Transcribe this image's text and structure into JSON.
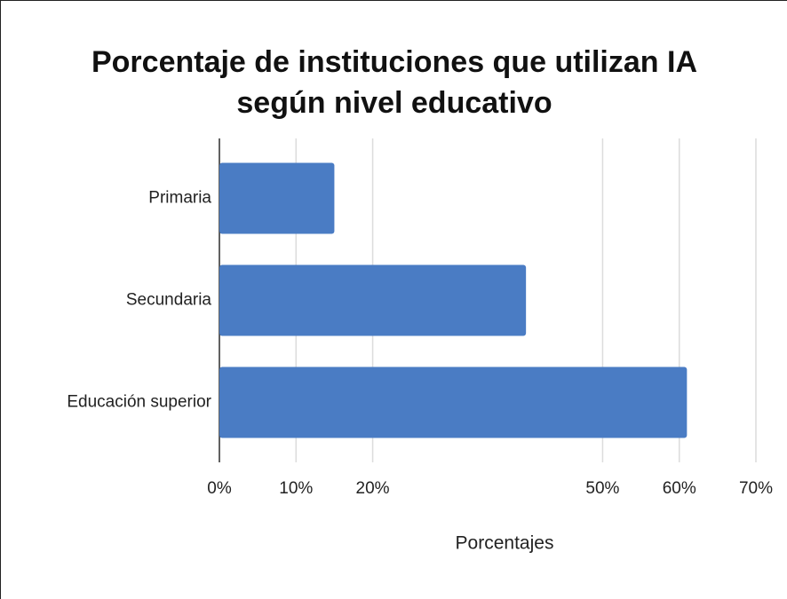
{
  "chart_data": {
    "type": "barh",
    "title": "Porcentaje de instituciones que utilizan IA según nivel educativo",
    "categories": [
      "Primaria",
      "Secundaria",
      "Educación superior"
    ],
    "values": [
      15,
      40,
      61
    ],
    "color": "#4a7cc4",
    "xlim": [
      0,
      70
    ],
    "xticks": [
      {
        "value": 0,
        "label": "0%"
      },
      {
        "value": 10,
        "label": "10%"
      },
      {
        "value": 20,
        "label": "20%"
      },
      {
        "value": 50,
        "label": "50%"
      },
      {
        "value": 60,
        "label": "60%"
      },
      {
        "value": 70,
        "label": "70%"
      }
    ],
    "xlabel": "Porcentajes",
    "grid": true
  }
}
